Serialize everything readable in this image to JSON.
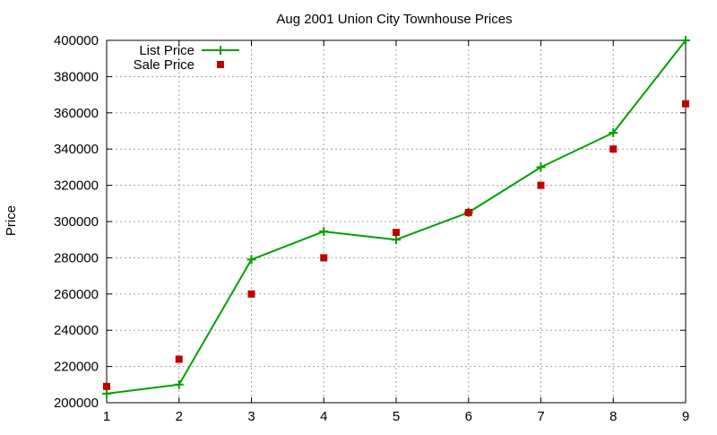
{
  "chart_data": {
    "type": "line",
    "title": "Aug 2001 Union City Townhouse Prices",
    "xlabel": "",
    "ylabel": "Price",
    "x": [
      1,
      2,
      3,
      4,
      5,
      6,
      7,
      8,
      9
    ],
    "xlim": [
      1,
      9
    ],
    "ylim": [
      200000,
      400000
    ],
    "x_ticks": [
      "1",
      "2",
      "3",
      "4",
      "5",
      "6",
      "7",
      "8",
      "9"
    ],
    "y_ticks": [
      "200000",
      "220000",
      "240000",
      "260000",
      "280000",
      "300000",
      "320000",
      "340000",
      "360000",
      "380000",
      "400000"
    ],
    "grid": true,
    "legend_position": "top-left",
    "series": [
      {
        "name": "List Price",
        "kind": "line-with-plus-markers",
        "color": "#00a000",
        "values": [
          205000,
          210000,
          279000,
          294500,
          290000,
          305000,
          330000,
          349000,
          400000
        ]
      },
      {
        "name": "Sale Price",
        "kind": "square-points",
        "color": "#c00000",
        "values": [
          209000,
          224000,
          260000,
          280000,
          294000,
          305000,
          320000,
          340000,
          365000
        ]
      }
    ]
  }
}
